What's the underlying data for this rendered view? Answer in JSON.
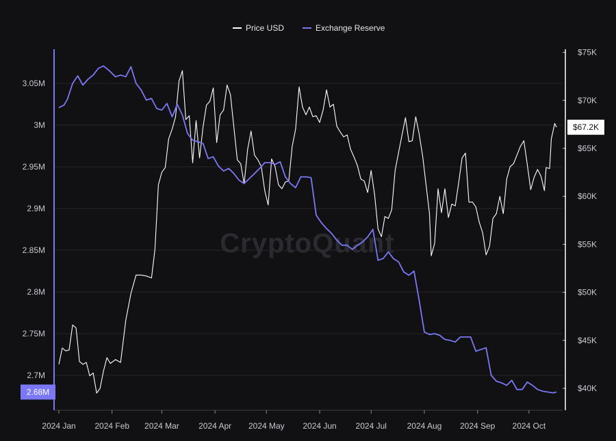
{
  "chart_data": {
    "type": "line",
    "title": "",
    "legend": {
      "placement": "top-center",
      "items": [
        {
          "label": "Price USD",
          "color": "#ffffff"
        },
        {
          "label": "Exchange Reserve",
          "color": "#7b78f5"
        }
      ]
    },
    "watermark": "CryptoQuant",
    "x_axis": {
      "ticks": [
        "2024 Jan",
        "2024 Feb",
        "2024 Mar",
        "2024 Apr",
        "2024 May",
        "2024 Jun",
        "2024 Jul",
        "2024 Aug",
        "2024 Sep",
        "2024 Oct"
      ],
      "range": [
        "2024-01-01",
        "2024-10-10"
      ]
    },
    "y_left": {
      "ticks": [
        "2.7M",
        "2.75M",
        "2.8M",
        "2.85M",
        "2.9M",
        "2.95M",
        "3M",
        "3.05M"
      ],
      "range": [
        2650000,
        3100000
      ],
      "current_label": "2.68M",
      "current_value": 2680000
    },
    "y_right": {
      "ticks": [
        "$40K",
        "$45K",
        "$50K",
        "$55K",
        "$60K",
        "$65K",
        "$70K",
        "$75K"
      ],
      "range": [
        37500,
        75000
      ],
      "current_label": "$67.2K",
      "current_value": 67200
    },
    "grid": true,
    "series": [
      {
        "name": "Price USD",
        "axis": "right",
        "color": "#ffffff",
        "points": [
          [
            "2024-01-01",
            42500
          ],
          [
            "2024-01-03",
            44200
          ],
          [
            "2024-01-05",
            43900
          ],
          [
            "2024-01-07",
            44000
          ],
          [
            "2024-01-09",
            46600
          ],
          [
            "2024-01-11",
            46300
          ],
          [
            "2024-01-13",
            42800
          ],
          [
            "2024-01-15",
            42500
          ],
          [
            "2024-01-17",
            42700
          ],
          [
            "2024-01-19",
            41300
          ],
          [
            "2024-01-21",
            41600
          ],
          [
            "2024-01-23",
            39500
          ],
          [
            "2024-01-25",
            40000
          ],
          [
            "2024-01-27",
            41800
          ],
          [
            "2024-01-29",
            43200
          ],
          [
            "2024-01-31",
            42600
          ],
          [
            "2024-02-03",
            43000
          ],
          [
            "2024-02-06",
            42700
          ],
          [
            "2024-02-09",
            47100
          ],
          [
            "2024-02-12",
            49900
          ],
          [
            "2024-02-15",
            51800
          ],
          [
            "2024-02-18",
            51800
          ],
          [
            "2024-02-21",
            51700
          ],
          [
            "2024-02-24",
            51500
          ],
          [
            "2024-02-26",
            54500
          ],
          [
            "2024-02-28",
            61200
          ],
          [
            "2024-03-01",
            62500
          ],
          [
            "2024-03-03",
            63000
          ],
          [
            "2024-03-05",
            66000
          ],
          [
            "2024-03-07",
            67000
          ],
          [
            "2024-03-09",
            68300
          ],
          [
            "2024-03-11",
            72000
          ],
          [
            "2024-03-13",
            73100
          ],
          [
            "2024-03-15",
            68000
          ],
          [
            "2024-03-17",
            68400
          ],
          [
            "2024-03-19",
            63500
          ],
          [
            "2024-03-21",
            67900
          ],
          [
            "2024-03-23",
            64000
          ],
          [
            "2024-03-25",
            67200
          ],
          [
            "2024-03-27",
            69500
          ],
          [
            "2024-03-29",
            69900
          ],
          [
            "2024-03-31",
            71300
          ],
          [
            "2024-04-02",
            65600
          ],
          [
            "2024-04-04",
            68500
          ],
          [
            "2024-04-06",
            69000
          ],
          [
            "2024-04-08",
            71600
          ],
          [
            "2024-04-10",
            70600
          ],
          [
            "2024-04-12",
            67200
          ],
          [
            "2024-04-14",
            63800
          ],
          [
            "2024-04-16",
            63400
          ],
          [
            "2024-04-18",
            61300
          ],
          [
            "2024-04-20",
            64900
          ],
          [
            "2024-04-22",
            66800
          ],
          [
            "2024-04-24",
            64300
          ],
          [
            "2024-04-26",
            63800
          ],
          [
            "2024-04-28",
            63100
          ],
          [
            "2024-04-30",
            60600
          ],
          [
            "2024-05-02",
            59100
          ],
          [
            "2024-05-04",
            63900
          ],
          [
            "2024-05-06",
            63100
          ],
          [
            "2024-05-08",
            61200
          ],
          [
            "2024-05-10",
            60800
          ],
          [
            "2024-05-12",
            61500
          ],
          [
            "2024-05-14",
            61600
          ],
          [
            "2024-05-16",
            65200
          ],
          [
            "2024-05-18",
            67000
          ],
          [
            "2024-05-20",
            71400
          ],
          [
            "2024-05-22",
            69300
          ],
          [
            "2024-05-24",
            68500
          ],
          [
            "2024-05-26",
            69300
          ],
          [
            "2024-05-28",
            68300
          ],
          [
            "2024-05-30",
            68400
          ],
          [
            "2024-06-01",
            67700
          ],
          [
            "2024-06-03",
            69000
          ],
          [
            "2024-06-05",
            71100
          ],
          [
            "2024-06-07",
            69300
          ],
          [
            "2024-06-09",
            69600
          ],
          [
            "2024-06-11",
            67300
          ],
          [
            "2024-06-13",
            66700
          ],
          [
            "2024-06-15",
            66200
          ],
          [
            "2024-06-17",
            66400
          ],
          [
            "2024-06-19",
            64900
          ],
          [
            "2024-06-21",
            64100
          ],
          [
            "2024-06-23",
            63200
          ],
          [
            "2024-06-25",
            61800
          ],
          [
            "2024-06-27",
            61600
          ],
          [
            "2024-06-29",
            60400
          ],
          [
            "2024-07-01",
            62700
          ],
          [
            "2024-07-03",
            60200
          ],
          [
            "2024-07-05",
            56600
          ],
          [
            "2024-07-07",
            55800
          ],
          [
            "2024-07-09",
            57900
          ],
          [
            "2024-07-11",
            57700
          ],
          [
            "2024-07-13",
            58600
          ],
          [
            "2024-07-15",
            62700
          ],
          [
            "2024-07-17",
            64600
          ],
          [
            "2024-07-19",
            66400
          ],
          [
            "2024-07-21",
            68200
          ],
          [
            "2024-07-23",
            65700
          ],
          [
            "2024-07-25",
            65800
          ],
          [
            "2024-07-27",
            68300
          ],
          [
            "2024-07-29",
            66500
          ],
          [
            "2024-07-31",
            64200
          ],
          [
            "2024-08-02",
            61200
          ],
          [
            "2024-08-04",
            58200
          ],
          [
            "2024-08-05",
            53800
          ],
          [
            "2024-08-07",
            55100
          ],
          [
            "2024-08-09",
            60800
          ],
          [
            "2024-08-11",
            58300
          ],
          [
            "2024-08-13",
            60800
          ],
          [
            "2024-08-15",
            57800
          ],
          [
            "2024-08-17",
            59200
          ],
          [
            "2024-08-19",
            59000
          ],
          [
            "2024-08-21",
            61400
          ],
          [
            "2024-08-23",
            64000
          ],
          [
            "2024-08-25",
            64500
          ],
          [
            "2024-08-27",
            59400
          ],
          [
            "2024-08-29",
            59400
          ],
          [
            "2024-08-31",
            58900
          ],
          [
            "2024-09-02",
            57300
          ],
          [
            "2024-09-04",
            56200
          ],
          [
            "2024-09-06",
            53900
          ],
          [
            "2024-09-08",
            54800
          ],
          [
            "2024-09-10",
            57700
          ],
          [
            "2024-09-12",
            58200
          ],
          [
            "2024-09-14",
            60000
          ],
          [
            "2024-09-16",
            58200
          ],
          [
            "2024-09-18",
            61800
          ],
          [
            "2024-09-20",
            63100
          ],
          [
            "2024-09-22",
            63400
          ],
          [
            "2024-09-24",
            64300
          ],
          [
            "2024-09-26",
            65200
          ],
          [
            "2024-09-28",
            65800
          ],
          [
            "2024-09-30",
            63300
          ],
          [
            "2024-10-02",
            60700
          ],
          [
            "2024-10-04",
            62000
          ],
          [
            "2024-10-06",
            62800
          ],
          [
            "2024-10-08",
            62100
          ],
          [
            "2024-10-10",
            60600
          ],
          [
            "2024-10-11",
            63000
          ],
          [
            "2024-10-13",
            62900
          ],
          [
            "2024-10-14",
            66000
          ],
          [
            "2024-10-16",
            67600
          ],
          [
            "2024-10-17",
            67200
          ]
        ]
      },
      {
        "name": "Exchange Reserve",
        "axis": "left",
        "color": "#7b78f5",
        "points": [
          [
            "2024-01-01",
            3021000
          ],
          [
            "2024-01-04",
            3024000
          ],
          [
            "2024-01-06",
            3031000
          ],
          [
            "2024-01-09",
            3050000
          ],
          [
            "2024-01-12",
            3059000
          ],
          [
            "2024-01-15",
            3048000
          ],
          [
            "2024-01-18",
            3055000
          ],
          [
            "2024-01-21",
            3060000
          ],
          [
            "2024-01-24",
            3068000
          ],
          [
            "2024-01-27",
            3071000
          ],
          [
            "2024-01-30",
            3066000
          ],
          [
            "2024-02-03",
            3058000
          ],
          [
            "2024-02-06",
            3060000
          ],
          [
            "2024-02-09",
            3058000
          ],
          [
            "2024-02-12",
            3070000
          ],
          [
            "2024-02-15",
            3050000
          ],
          [
            "2024-02-18",
            3042000
          ],
          [
            "2024-02-21",
            3030000
          ],
          [
            "2024-02-24",
            3032000
          ],
          [
            "2024-02-27",
            3020000
          ],
          [
            "2024-03-01",
            3018000
          ],
          [
            "2024-03-04",
            3026000
          ],
          [
            "2024-03-07",
            3010000
          ],
          [
            "2024-03-10",
            3025000
          ],
          [
            "2024-03-13",
            3012000
          ],
          [
            "2024-03-16",
            2990000
          ],
          [
            "2024-03-19",
            2982000
          ],
          [
            "2024-03-22",
            2980000
          ],
          [
            "2024-03-25",
            2978000
          ],
          [
            "2024-03-28",
            2960000
          ],
          [
            "2024-03-31",
            2962000
          ],
          [
            "2024-04-03",
            2951000
          ],
          [
            "2024-04-06",
            2945000
          ],
          [
            "2024-04-09",
            2948000
          ],
          [
            "2024-04-12",
            2942000
          ],
          [
            "2024-04-15",
            2934000
          ],
          [
            "2024-04-18",
            2930000
          ],
          [
            "2024-04-21",
            2936000
          ],
          [
            "2024-04-24",
            2942000
          ],
          [
            "2024-04-27",
            2948000
          ],
          [
            "2024-04-30",
            2955000
          ],
          [
            "2024-05-03",
            2955000
          ],
          [
            "2024-05-06",
            2953000
          ],
          [
            "2024-05-09",
            2956000
          ],
          [
            "2024-05-12",
            2938000
          ],
          [
            "2024-05-15",
            2930000
          ],
          [
            "2024-05-18",
            2925000
          ],
          [
            "2024-05-21",
            2938000
          ],
          [
            "2024-05-24",
            2938000
          ],
          [
            "2024-05-27",
            2937000
          ],
          [
            "2024-05-30",
            2892000
          ],
          [
            "2024-06-02",
            2883000
          ],
          [
            "2024-06-05",
            2876000
          ],
          [
            "2024-06-08",
            2870000
          ],
          [
            "2024-06-11",
            2862000
          ],
          [
            "2024-06-14",
            2856000
          ],
          [
            "2024-06-17",
            2856000
          ],
          [
            "2024-06-20",
            2851000
          ],
          [
            "2024-06-23",
            2856000
          ],
          [
            "2024-06-26",
            2860000
          ],
          [
            "2024-06-29",
            2866000
          ],
          [
            "2024-07-02",
            2875000
          ],
          [
            "2024-07-05",
            2838000
          ],
          [
            "2024-07-08",
            2840000
          ],
          [
            "2024-07-11",
            2848000
          ],
          [
            "2024-07-14",
            2840000
          ],
          [
            "2024-07-17",
            2836000
          ],
          [
            "2024-07-20",
            2824000
          ],
          [
            "2024-07-23",
            2820000
          ],
          [
            "2024-07-26",
            2825000
          ],
          [
            "2024-07-29",
            2790000
          ],
          [
            "2024-08-01",
            2752000
          ],
          [
            "2024-08-04",
            2749000
          ],
          [
            "2024-08-07",
            2750000
          ],
          [
            "2024-08-10",
            2748000
          ],
          [
            "2024-08-13",
            2743000
          ],
          [
            "2024-08-16",
            2742000
          ],
          [
            "2024-08-19",
            2740000
          ],
          [
            "2024-08-22",
            2746000
          ],
          [
            "2024-08-25",
            2746000
          ],
          [
            "2024-08-28",
            2746000
          ],
          [
            "2024-08-31",
            2729000
          ],
          [
            "2024-09-03",
            2731000
          ],
          [
            "2024-09-06",
            2733000
          ],
          [
            "2024-09-09",
            2700000
          ],
          [
            "2024-09-12",
            2693000
          ],
          [
            "2024-09-15",
            2691000
          ],
          [
            "2024-09-18",
            2688000
          ],
          [
            "2024-09-21",
            2694000
          ],
          [
            "2024-09-24",
            2683000
          ],
          [
            "2024-09-27",
            2683000
          ],
          [
            "2024-09-30",
            2692000
          ],
          [
            "2024-10-03",
            2688000
          ],
          [
            "2024-10-06",
            2683000
          ],
          [
            "2024-10-09",
            2681000
          ],
          [
            "2024-10-12",
            2680000
          ],
          [
            "2024-10-15",
            2679000
          ],
          [
            "2024-10-17",
            2680000
          ]
        ]
      }
    ]
  }
}
